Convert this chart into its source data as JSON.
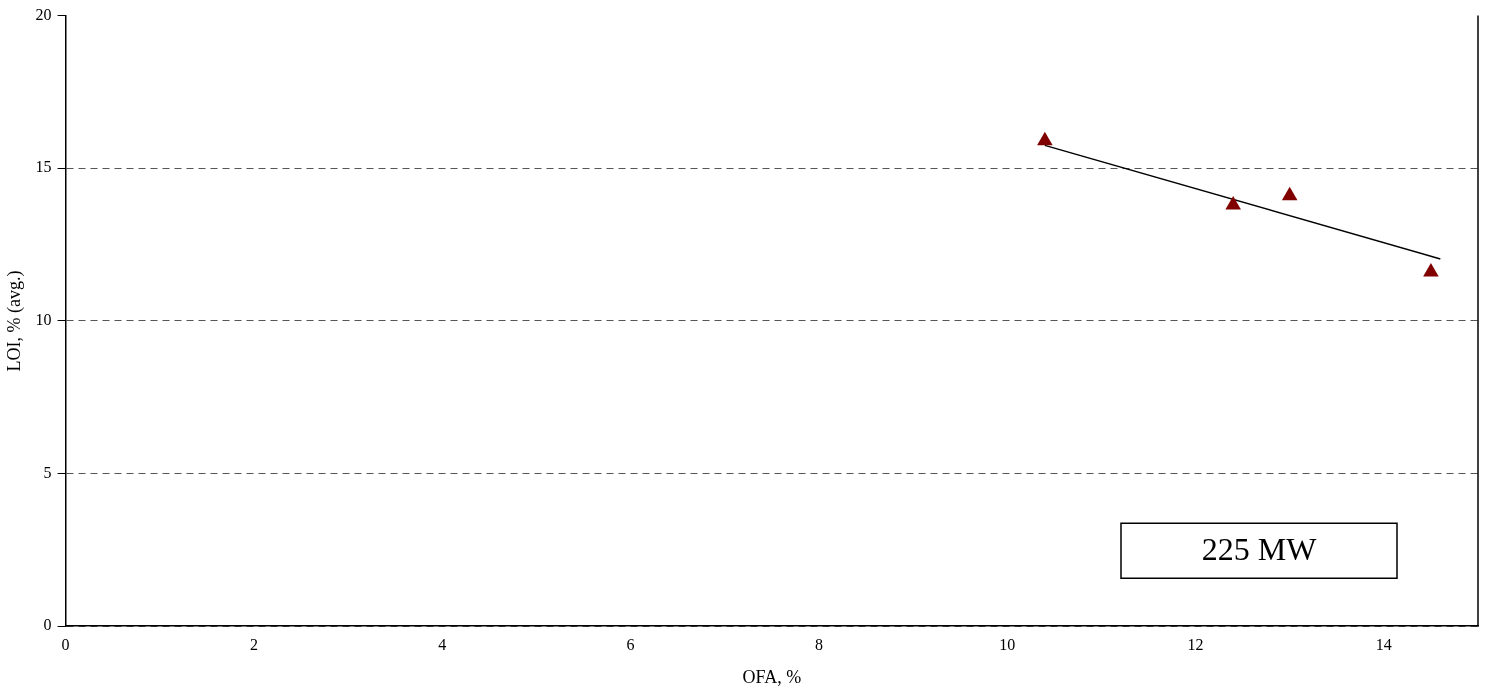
{
  "chart_data": {
    "type": "scatter",
    "xlabel": "OFA, %",
    "ylabel": "LOI, % (avg.)",
    "xlim": [
      0,
      15
    ],
    "xticks": [
      0,
      2,
      4,
      6,
      8,
      10,
      12,
      14
    ],
    "ylim": [
      0,
      20
    ],
    "yticks": [
      0,
      5,
      10,
      15,
      20
    ],
    "grid": "y",
    "legend": false,
    "marker": "triangle",
    "annotations": [
      "225 MW"
    ],
    "series": [
      {
        "color": "#800000",
        "x": [
          10.4,
          12.4,
          13.0,
          14.5
        ],
        "values": [
          15.9,
          13.8,
          14.1,
          11.6
        ]
      },
      {
        "type": "line",
        "color": "#000000",
        "marker": "none",
        "x": [
          10.4,
          14.6
        ],
        "values": [
          15.75,
          12.03
        ]
      }
    ]
  }
}
